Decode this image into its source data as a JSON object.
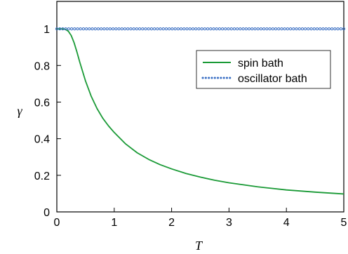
{
  "chart_data": {
    "type": "line",
    "title": "",
    "xlabel": "T",
    "ylabel": "γ",
    "xlim": [
      0,
      5
    ],
    "ylim": [
      0,
      1.15
    ],
    "xticks": [
      "0",
      "1",
      "2",
      "3",
      "4",
      "5"
    ],
    "yticks": [
      "0",
      "0.2",
      "0.4",
      "0.6",
      "0.8",
      "1"
    ],
    "grid": false,
    "legend_position": "top-right",
    "series": [
      {
        "name": "spin bath",
        "style": "solid",
        "color": "#1a9a36",
        "x": [
          0,
          0.1,
          0.15,
          0.2,
          0.25,
          0.3,
          0.35,
          0.4,
          0.5,
          0.6,
          0.7,
          0.8,
          0.9,
          1.0,
          1.2,
          1.4,
          1.6,
          1.8,
          2.0,
          2.25,
          2.5,
          2.75,
          3.0,
          3.5,
          4.0,
          4.5,
          5.0
        ],
        "y": [
          1.0,
          1.0,
          0.997,
          0.987,
          0.964,
          0.925,
          0.874,
          0.818,
          0.715,
          0.631,
          0.565,
          0.512,
          0.47,
          0.434,
          0.371,
          0.323,
          0.287,
          0.258,
          0.235,
          0.21,
          0.19,
          0.173,
          0.159,
          0.137,
          0.12,
          0.108,
          0.098
        ]
      },
      {
        "name": "oscillator bath",
        "style": "dotted",
        "color": "#3a6fc4",
        "x": [
          0,
          5
        ],
        "y": [
          1.0,
          1.0
        ]
      }
    ]
  }
}
